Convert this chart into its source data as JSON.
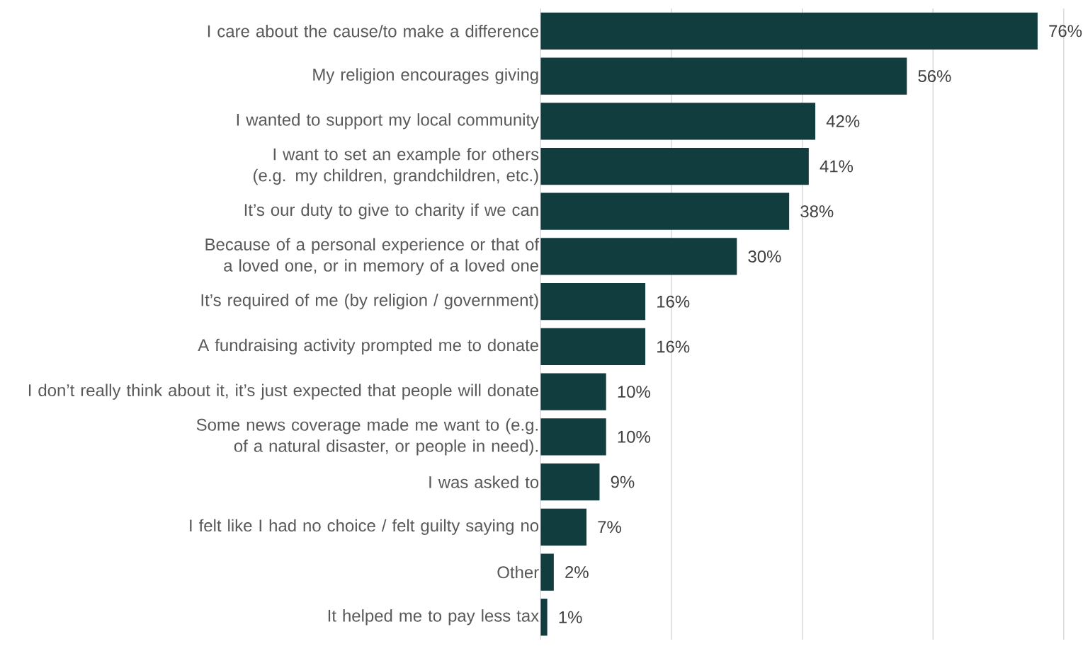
{
  "chart_data": {
    "type": "bar",
    "orientation": "horizontal",
    "categories": [
      "I care about the cause/to make a difference",
      "My religion encourages giving",
      "I wanted to support my local community",
      "I want to set an example for others (e.g. my children, grandchildren, etc.)",
      "It’s our duty to give to charity if we can",
      "Because of a personal experience or that of a loved one, or in memory of a loved one",
      "It’s required of me (by religion / government)",
      "A fundraising activity prompted me to donate",
      "I don’t really think about it, it’s just expected that people will donate",
      "Some news coverage made me want to (e.g. of a natural disaster, or people in need).",
      "I was asked to",
      "I felt like I had no choice / felt guilty saying no",
      "Other",
      "It helped me to pay less tax"
    ],
    "values": [
      76,
      56,
      42,
      41,
      38,
      30,
      16,
      16,
      10,
      10,
      9,
      7,
      2,
      1
    ],
    "value_labels": [
      "76%",
      "56%",
      "42%",
      "41%",
      "38%",
      "30%",
      "16%",
      "16%",
      "10%",
      "10%",
      "9%",
      "7%",
      "2%",
      "1%"
    ],
    "color": "#113d3f",
    "xlim": [
      0,
      80
    ],
    "xticks": [
      {
        "value": 0,
        "label": null
      },
      {
        "value": 20,
        "label": null
      },
      {
        "value": 40,
        "label": null
      },
      {
        "value": 60,
        "label": null
      },
      {
        "value": 80,
        "label": null
      }
    ],
    "grid": "x",
    "tick_labels": "y"
  }
}
